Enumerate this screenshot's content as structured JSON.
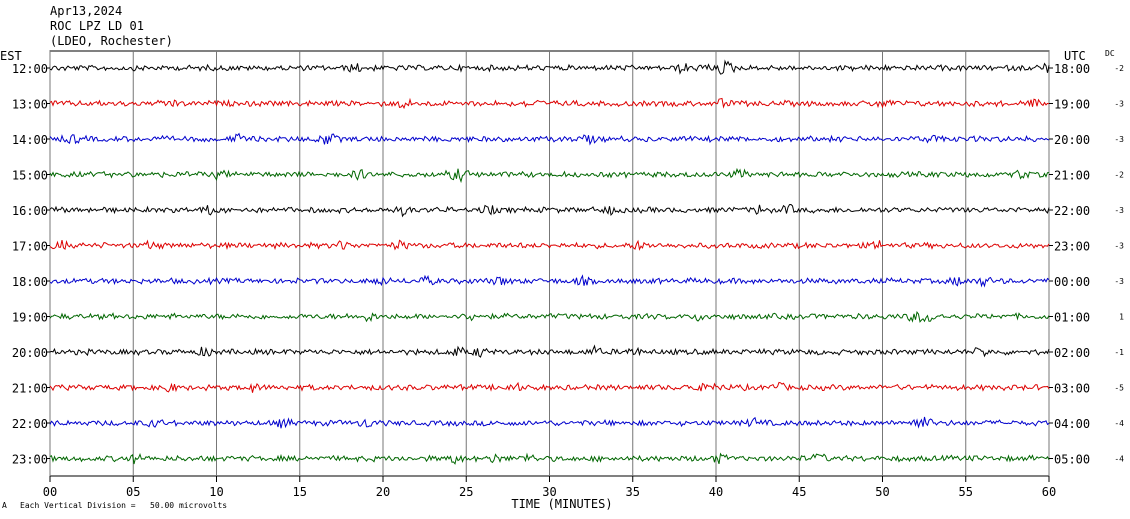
{
  "header": {
    "date": "Apr13,2024",
    "station": "ROC LPZ LD 01",
    "network": "(LDEO, Rochester)"
  },
  "corner_labels": {
    "left": "EST",
    "right": "UTC",
    "dc": "DC"
  },
  "footer": {
    "scale_note": "Each Vertical Division =   50.00 microvolts",
    "scale_marker": "A"
  },
  "chart_data": {
    "type": "line",
    "title": "",
    "xlabel": "TIME (MINUTES)",
    "ylabel": "",
    "xlim": [
      0,
      60
    ],
    "x_ticks": [
      "00",
      "05",
      "10",
      "15",
      "20",
      "25",
      "30",
      "35",
      "40",
      "45",
      "50",
      "55",
      "60"
    ],
    "grid": true,
    "trace_colors": [
      "#000000",
      "#dd0000",
      "#0000cc",
      "#006600"
    ],
    "rows": [
      {
        "est": "12:00",
        "utc": "18:00",
        "dc": "-2"
      },
      {
        "est": "13:00",
        "utc": "19:00",
        "dc": "-3"
      },
      {
        "est": "14:00",
        "utc": "20:00",
        "dc": "-3"
      },
      {
        "est": "15:00",
        "utc": "21:00",
        "dc": "-2"
      },
      {
        "est": "16:00",
        "utc": "22:00",
        "dc": "-3"
      },
      {
        "est": "17:00",
        "utc": "23:00",
        "dc": "-3"
      },
      {
        "est": "18:00",
        "utc": "00:00",
        "dc": "-3"
      },
      {
        "est": "19:00",
        "utc": "01:00",
        "dc": "1"
      },
      {
        "est": "20:00",
        "utc": "02:00",
        "dc": "-1"
      },
      {
        "est": "21:00",
        "utc": "03:00",
        "dc": "-5"
      },
      {
        "est": "22:00",
        "utc": "04:00",
        "dc": "-4"
      },
      {
        "est": "23:00",
        "utc": "05:00",
        "dc": "-4"
      }
    ]
  }
}
